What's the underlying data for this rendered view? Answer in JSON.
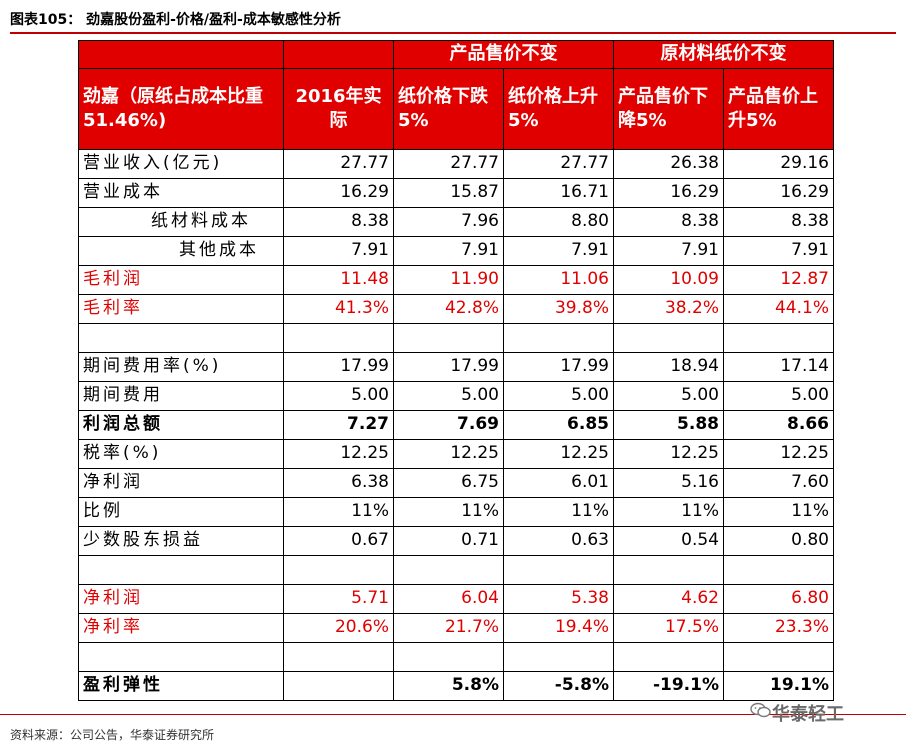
{
  "title": "图表105：  劲嘉股份盈利-价格/盈利-成本敏感性分析",
  "header": {
    "group1": "产品售价不变",
    "group2": "原材料纸价不变",
    "row_label": "劲嘉（原纸占成本比重51.46%)",
    "cols": [
      "2016年实际",
      "纸价格下跌5%",
      "纸价格上升5%",
      "产品售价下降5%",
      "产品售价上升5%"
    ]
  },
  "rows": [
    {
      "label": "营业收入(亿元)",
      "values": [
        "27.77",
        "27.77",
        "27.77",
        "26.38",
        "29.16"
      ]
    },
    {
      "label": "营业成本",
      "values": [
        "16.29",
        "15.87",
        "16.71",
        "16.29",
        "16.29"
      ]
    },
    {
      "label": "纸材料成本",
      "values": [
        "8.38",
        "7.96",
        "8.80",
        "8.38",
        "8.38"
      ]
    },
    {
      "label": "其他成本",
      "values": [
        "7.91",
        "7.91",
        "7.91",
        "7.91",
        "7.91"
      ]
    },
    {
      "label": "毛利润",
      "values": [
        "11.48",
        "11.90",
        "11.06",
        "10.09",
        "12.87"
      ]
    },
    {
      "label": "毛利率",
      "values": [
        "41.3%",
        "42.8%",
        "39.8%",
        "38.2%",
        "44.1%"
      ]
    },
    {
      "label": "期间费用率(%)",
      "values": [
        "17.99",
        "17.99",
        "17.99",
        "18.94",
        "17.14"
      ]
    },
    {
      "label": "期间费用",
      "values": [
        "5.00",
        "5.00",
        "5.00",
        "5.00",
        "5.00"
      ]
    },
    {
      "label": "利润总额",
      "values": [
        "7.27",
        "7.69",
        "6.85",
        "5.88",
        "8.66"
      ]
    },
    {
      "label": "税率(%)",
      "values": [
        "12.25",
        "12.25",
        "12.25",
        "12.25",
        "12.25"
      ]
    },
    {
      "label": "净利润",
      "values": [
        "6.38",
        "6.75",
        "6.01",
        "5.16",
        "7.60"
      ]
    },
    {
      "label": "比例",
      "values": [
        "11%",
        "11%",
        "11%",
        "11%",
        "11%"
      ]
    },
    {
      "label": "少数股东损益",
      "values": [
        "0.67",
        "0.71",
        "0.63",
        "0.54",
        "0.80"
      ]
    },
    {
      "label": "净利润",
      "values": [
        "5.71",
        "6.04",
        "5.38",
        "4.62",
        "6.80"
      ]
    },
    {
      "label": "净利率",
      "values": [
        "20.6%",
        "21.7%",
        "19.4%",
        "17.5%",
        "23.3%"
      ]
    },
    {
      "label": "盈利弹性",
      "values": [
        "",
        "5.8%",
        "-5.8%",
        "-19.1%",
        "19.1%"
      ]
    }
  ],
  "source": "资料来源：公司公告，华泰证券研究所",
  "watermark": "华泰轻工"
}
